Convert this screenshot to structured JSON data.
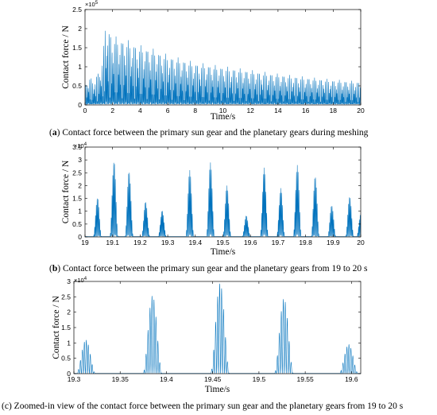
{
  "chart_data": [
    {
      "id": "a",
      "type": "line",
      "caption_tag": "a",
      "caption_text": "Contact force between the primary sun gear and the planetary gears during meshing",
      "xlabel": "Time/s",
      "ylabel": "Contact force / N",
      "xlim": [
        0,
        20
      ],
      "ylim": [
        0,
        250000
      ],
      "x_ticks": [
        0,
        2,
        4,
        6,
        8,
        10,
        12,
        14,
        16,
        18,
        20
      ],
      "x_tick_labels": [
        "0",
        "2",
        "4",
        "6",
        "8",
        "10",
        "12",
        "14",
        "16",
        "18",
        "20"
      ],
      "y_ticks": [
        0,
        50000,
        100000,
        150000,
        200000,
        250000
      ],
      "y_tick_labels": [
        "0",
        "0.5",
        "1",
        "1.5",
        "2",
        "2.5"
      ],
      "y_multiplier": "×10",
      "y_exponent": "5",
      "line_color": "#0072BD",
      "grid": false,
      "series": [
        {
          "signal": "meshing_bursts",
          "x_start": 0,
          "x_end": 20,
          "samples": 2400,
          "burst_period_s": 0.1,
          "mesh_period_s": 0.0045,
          "phase_s": 0,
          "envelope": {
            "x": [
              0,
              0.3,
              0.6,
              1.0,
              1.3,
              1.45,
              1.6,
              2.0,
              3.0,
              4.0,
              5.0,
              6.0,
              8.0,
              10.0,
              12.0,
              14.0,
              16.0,
              18.0,
              20.0
            ],
            "y": [
              50000,
              75000,
              60000,
              90000,
              120000,
              218000,
              210000,
              180000,
              170000,
              155000,
              145000,
              130000,
              110000,
              100000,
              90000,
              80000,
              72000,
              65000,
              60000
            ]
          },
          "floor": 2000
        }
      ]
    },
    {
      "id": "b",
      "type": "line",
      "caption_tag": "b",
      "caption_text": "Contact force between the primary sun gear and the planetary gears from 19 to 20 s",
      "xlabel": "Time/s",
      "ylabel": "Contact force / N",
      "xlim": [
        19,
        20
      ],
      "ylim": [
        0,
        35000
      ],
      "x_ticks": [
        19,
        19.1,
        19.2,
        19.3,
        19.4,
        19.5,
        19.6,
        19.7,
        19.8,
        19.9,
        20
      ],
      "x_tick_labels": [
        "19",
        "19.1",
        "19.2",
        "19.3",
        "19.4",
        "19.5",
        "19.6",
        "19.7",
        "19.8",
        "19.9",
        "20"
      ],
      "y_ticks": [
        0,
        5000,
        10000,
        15000,
        20000,
        25000,
        30000,
        35000
      ],
      "y_tick_labels": [
        "0",
        "0.5",
        "1",
        "1.5",
        "2",
        "2.5",
        "3",
        "3.5"
      ],
      "y_multiplier": "×10",
      "y_exponent": "4",
      "line_color": "#0072BD",
      "grid": false,
      "series": [
        {
          "signal": "meshing_bursts",
          "x_start": 19,
          "x_end": 20,
          "samples": 2400,
          "burst_centers": [
            19.045,
            19.105,
            19.16,
            19.22,
            19.28,
            19.38,
            19.455,
            19.515,
            19.585,
            19.65,
            19.71,
            19.77,
            19.835,
            19.895,
            19.96,
            20.0
          ],
          "burst_peaks": [
            15500,
            30000,
            26000,
            14000,
            10500,
            26000,
            29000,
            20000,
            8500,
            27000,
            19000,
            28000,
            24000,
            12500,
            16000,
            9000
          ],
          "burst_width_s": 0.03,
          "mesh_period_s": 0.003,
          "floor": 150
        }
      ]
    },
    {
      "id": "c",
      "type": "line",
      "caption_tag": "c",
      "caption_text": "Zoomed-in view of the contact force between the primary sun gear and the planetary gears from 19 to 20 s",
      "xlabel": "Time/s",
      "ylabel": "Contact force / N",
      "xlim": [
        19.3,
        19.61
      ],
      "ylim": [
        0,
        30000
      ],
      "x_ticks": [
        19.3,
        19.35,
        19.4,
        19.45,
        19.5,
        19.55,
        19.6
      ],
      "x_tick_labels": [
        "19.3",
        "19.35",
        "19.4",
        "19.45",
        "19.5",
        "19.55",
        "19.6"
      ],
      "y_ticks": [
        0,
        5000,
        10000,
        15000,
        20000,
        25000,
        30000
      ],
      "y_tick_labels": [
        "0",
        "0.5",
        "1",
        "1.5",
        "2",
        "2.5",
        "3"
      ],
      "y_multiplier": "×10",
      "y_exponent": "4",
      "line_color": "#0072BD",
      "grid": false,
      "series": [
        {
          "signal": "meshing_bursts",
          "x_start": 19.3,
          "x_end": 19.61,
          "samples": 3000,
          "burst_centers": [
            19.313,
            19.385,
            19.458,
            19.527,
            19.597
          ],
          "burst_peaks": [
            11000,
            25500,
            29500,
            24500,
            9500
          ],
          "burst_width_s": 0.021,
          "mesh_period_s": 0.00215,
          "floor": 100
        }
      ]
    }
  ]
}
